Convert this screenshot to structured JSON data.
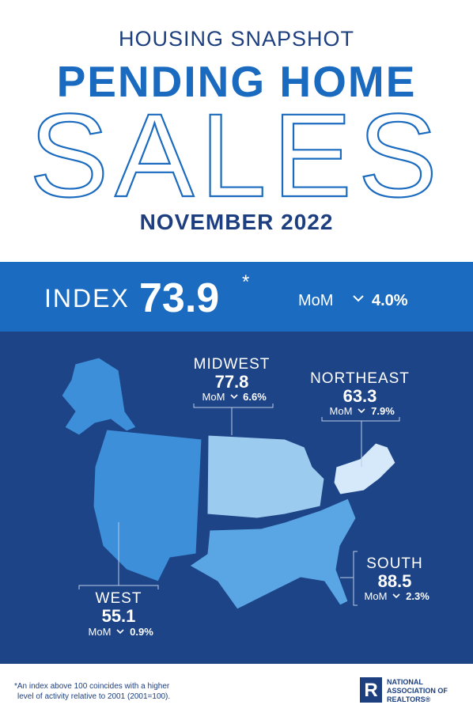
{
  "header": {
    "kicker": "HOUSING SNAPSHOT",
    "title": "PENDING HOME",
    "title2": "SALES",
    "date": "NOVEMBER 2022"
  },
  "index": {
    "label": "INDEX",
    "value": "73.9",
    "asterisk": "*",
    "mom_label": "MoM",
    "mom": "4.0%"
  },
  "regions": [
    {
      "name": "MIDWEST",
      "value": "77.8",
      "mom_label": "MoM",
      "mom": "6.6%"
    },
    {
      "name": "NORTHEAST",
      "value": "63.3",
      "mom_label": "MoM",
      "mom": "7.9%"
    },
    {
      "name": "SOUTH",
      "value": "88.5",
      "mom_label": "MoM",
      "mom": "2.3%"
    },
    {
      "name": "WEST",
      "value": "55.1",
      "mom_label": "MoM",
      "mom": "0.9%"
    }
  ],
  "footnote": {
    "line1": "*An index above 100 coincides with a higher",
    "line2": "level of activity relative to 2001 (2001=100)."
  },
  "logo": {
    "line1": "NATIONAL",
    "line2": "ASSOCIATION OF",
    "line3": "REALTORS®"
  }
}
